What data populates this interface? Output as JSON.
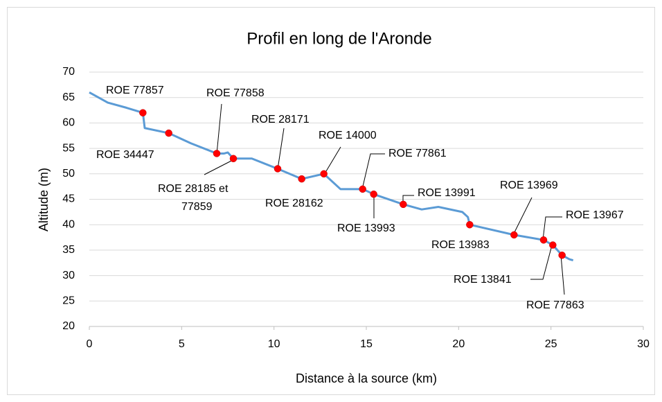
{
  "chart_data": {
    "type": "line",
    "title": "Profil en long de l'Aronde",
    "xlabel": "Distance à la source (km)",
    "ylabel": "Altitude (m)",
    "xlim": [
      0,
      30
    ],
    "xticks": [
      0,
      5,
      10,
      15,
      20,
      25,
      30
    ],
    "ylim": [
      20,
      70
    ],
    "yticks": [
      20,
      25,
      30,
      35,
      40,
      45,
      50,
      55,
      60,
      65,
      70
    ],
    "grid": true,
    "series": [
      {
        "color": "#5b9bd5",
        "x": [
          0,
          1,
          2,
          2.9,
          3,
          4.3,
          5.5,
          6.9,
          7.3,
          7.5,
          7.8,
          8.8,
          10.2,
          11.5,
          12.7,
          13.6,
          14.8,
          15.4,
          17,
          18,
          18.9,
          20.2,
          20.5,
          20.6,
          23,
          24.6,
          25.1,
          25.6,
          26,
          26.2
        ],
        "values": [
          66,
          64,
          63,
          62,
          59,
          58,
          56,
          54,
          54,
          54.2,
          53,
          53,
          51,
          49,
          50,
          47,
          47,
          46,
          44,
          43,
          43.5,
          42.5,
          41.5,
          40,
          38,
          37,
          36,
          34,
          33.2,
          33
        ]
      },
      {
        "color": "#ff0000",
        "x": [
          2.9,
          4.3,
          6.9,
          7.8,
          10.2,
          11.5,
          12.7,
          14.8,
          15.4,
          17,
          20.6,
          23,
          24.6,
          25.1,
          25.6
        ],
        "values": [
          62,
          58,
          54,
          53,
          51,
          49,
          50,
          47,
          46,
          44,
          40,
          38,
          37,
          36,
          34
        ],
        "labels": [
          "ROE 77857",
          "ROE 34447",
          "ROE 77858",
          [
            "ROE 28185 et",
            "77859"
          ],
          "ROE 28171",
          "ROE 28162",
          "ROE 14000",
          "ROE 77861",
          "ROE 13993",
          "ROE 13991",
          "ROE 13983",
          "ROE 13969",
          "ROE 13967",
          "ROE 13841",
          "ROE 77863"
        ]
      }
    ]
  }
}
